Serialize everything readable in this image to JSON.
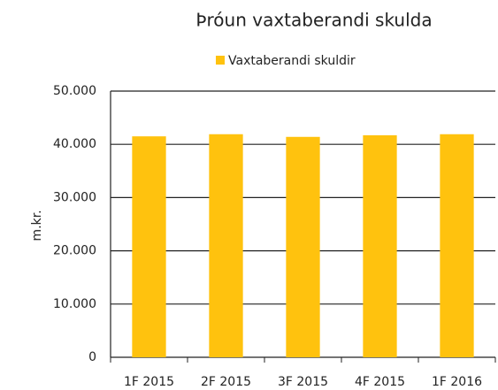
{
  "chart_data": {
    "type": "bar",
    "title": "Þróun vaxtaberandi skulda",
    "y_label": "m.kr.",
    "categories": [
      "1F 2015",
      "2F 2015",
      "3F 2015",
      "4F 2015",
      "1F 2016"
    ],
    "series": [
      {
        "name": "Vaxtaberandi skuldir",
        "color": "#ffc20e",
        "values": [
          41500,
          41900,
          41400,
          41700,
          41900
        ]
      }
    ],
    "ylim": [
      0,
      50000
    ],
    "yticks": [
      0,
      {
        "value": 10000,
        "label": "10.000"
      },
      {
        "value": 20000,
        "label": "20.000"
      },
      {
        "value": 30000,
        "label": "30.000"
      },
      {
        "value": 40000,
        "label": "40.000"
      },
      {
        "value": 50000,
        "label": "50.000"
      }
    ],
    "grid": true,
    "legend": "top"
  }
}
